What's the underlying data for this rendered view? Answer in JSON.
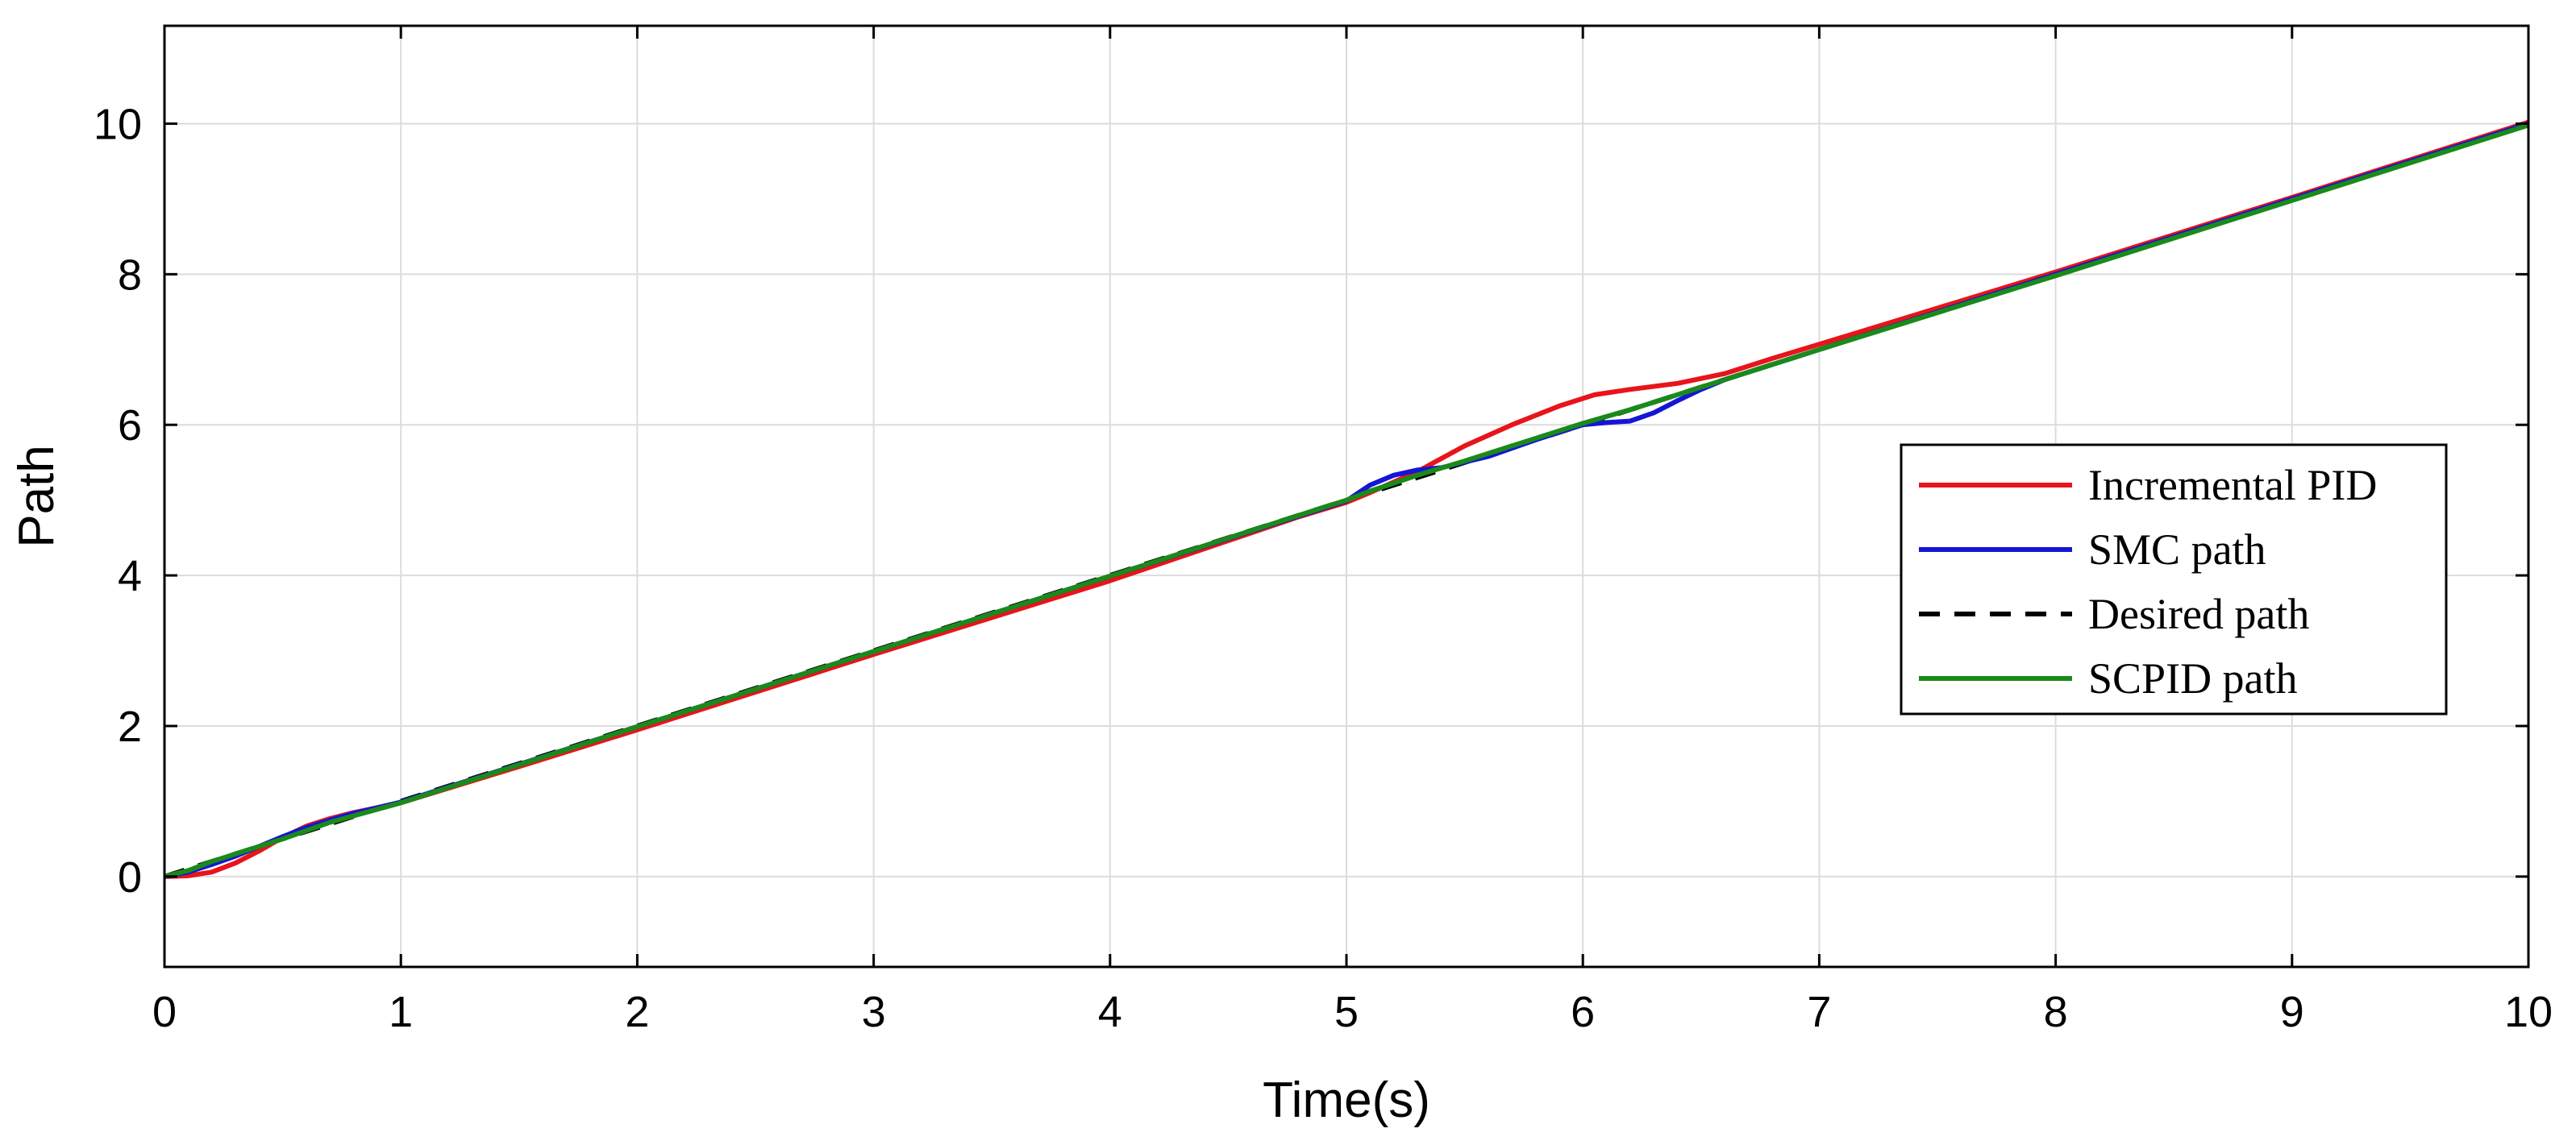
{
  "chart_data": {
    "type": "line",
    "title": "",
    "xlabel": "Time(s)",
    "ylabel": "Path",
    "xlim": [
      0,
      10
    ],
    "ylim": [
      -1.2,
      11.3
    ],
    "xticks": [
      0,
      1,
      2,
      3,
      4,
      5,
      6,
      7,
      8,
      9,
      10
    ],
    "yticks": [
      0,
      2,
      4,
      6,
      8,
      10
    ],
    "grid": true,
    "legend_position": "right",
    "series": [
      {
        "name": "Incremental PID",
        "color": "#e8141b",
        "style": "solid",
        "x": [
          0,
          0.1,
          0.2,
          0.3,
          0.4,
          0.5,
          0.6,
          0.7,
          0.8,
          1,
          1.5,
          2,
          3,
          4,
          4.8,
          5,
          5.1,
          5.3,
          5.5,
          5.7,
          5.9,
          6.05,
          6.2,
          6.4,
          6.6,
          6.8,
          7,
          8,
          9,
          10
        ],
        "y": [
          0,
          0.01,
          0.06,
          0.18,
          0.34,
          0.52,
          0.67,
          0.77,
          0.85,
          0.98,
          1.46,
          1.95,
          2.95,
          3.93,
          4.78,
          4.97,
          5.1,
          5.38,
          5.72,
          6.0,
          6.25,
          6.4,
          6.47,
          6.55,
          6.68,
          6.88,
          7.07,
          8.03,
          9.02,
          10.02
        ]
      },
      {
        "name": "SMC path",
        "color": "#1515d6",
        "style": "solid",
        "x": [
          0,
          0.1,
          0.2,
          0.3,
          0.4,
          0.5,
          0.6,
          0.7,
          0.8,
          1,
          2,
          3,
          4,
          5,
          5.1,
          5.2,
          5.3,
          5.4,
          5.6,
          5.8,
          6.0,
          6.1,
          6.2,
          6.3,
          6.4,
          6.5,
          6.6,
          7,
          8,
          9,
          10
        ],
        "y": [
          0,
          0.06,
          0.16,
          0.27,
          0.4,
          0.53,
          0.65,
          0.75,
          0.84,
          0.99,
          1.99,
          2.99,
          3.99,
          4.99,
          5.2,
          5.33,
          5.4,
          5.43,
          5.58,
          5.8,
          6.0,
          6.03,
          6.05,
          6.16,
          6.32,
          6.47,
          6.6,
          7.0,
          8.0,
          9.0,
          10.0
        ]
      },
      {
        "name": "Desired path",
        "color": "#000000",
        "style": "dashed",
        "x": [
          0,
          1,
          2,
          3,
          4,
          5,
          6,
          7,
          8,
          9,
          10
        ],
        "y": [
          0,
          1,
          2,
          3,
          4,
          5,
          6,
          7,
          8,
          9,
          10
        ]
      },
      {
        "name": "SCPID path",
        "color": "#1a8a1a",
        "style": "solid",
        "x": [
          0,
          0.1,
          0.2,
          0.3,
          0.5,
          0.7,
          1,
          2,
          3,
          4,
          4.9,
          5,
          5.1,
          5.3,
          5.5,
          5.7,
          5.9,
          6.0,
          6.2,
          6.4,
          6.6,
          7,
          8,
          9,
          10
        ],
        "y": [
          0,
          0.08,
          0.2,
          0.3,
          0.5,
          0.72,
          0.98,
          1.99,
          2.99,
          3.99,
          4.9,
          5.0,
          5.12,
          5.33,
          5.52,
          5.72,
          5.92,
          6.02,
          6.2,
          6.4,
          6.6,
          7.0,
          7.98,
          8.98,
          9.98
        ]
      }
    ]
  }
}
